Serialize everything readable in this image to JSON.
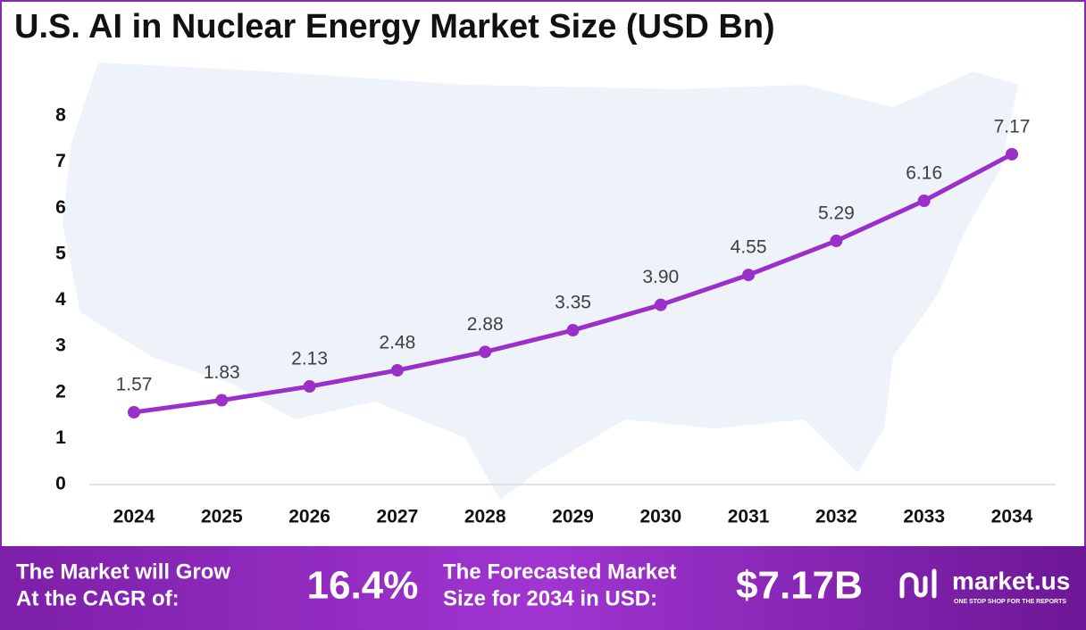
{
  "chart_data": {
    "type": "line",
    "title": "U.S. AI in Nuclear Energy Market Size (USD Bn)",
    "categories": [
      "2024",
      "2025",
      "2026",
      "2027",
      "2028",
      "2029",
      "2030",
      "2031",
      "2032",
      "2033",
      "2034"
    ],
    "series": [
      {
        "color": "#9b2fc9",
        "values": [
          1.57,
          1.83,
          2.13,
          2.48,
          2.88,
          3.35,
          3.9,
          4.55,
          5.29,
          6.16,
          7.17
        ],
        "value_labels": [
          "1.57",
          "1.83",
          "2.13",
          "2.48",
          "2.88",
          "3.35",
          "3.90",
          "4.55",
          "5.29",
          "6.16",
          "7.17"
        ]
      }
    ],
    "ylim": [
      0,
      8
    ],
    "yticks": [
      0,
      1,
      2,
      3,
      4,
      5,
      6,
      7,
      8
    ],
    "grid": false
  },
  "footer": {
    "cagr_label": [
      "The Market will Grow",
      "At the CAGR of:"
    ],
    "cagr_value": "16.4%",
    "forecast_label": [
      "The Forecasted Market",
      "Size for 2034 in USD:"
    ],
    "forecast_value": "$7.17B",
    "brand": "market.us",
    "tagline": "ONE STOP SHOP FOR THE REPORTS"
  }
}
